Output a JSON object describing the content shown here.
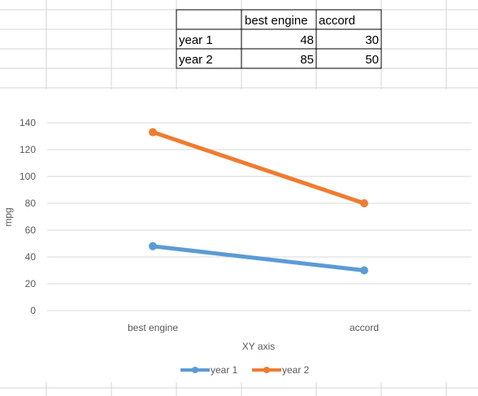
{
  "table": {
    "headers": [
      "",
      "best engine",
      "accord"
    ],
    "rows": [
      {
        "label": "year 1",
        "values": [
          "48",
          "30"
        ]
      },
      {
        "label": "year 2",
        "values": [
          "85",
          "50"
        ]
      }
    ]
  },
  "chart_data": {
    "type": "line",
    "stacked": true,
    "categories": [
      "best engine",
      "accord"
    ],
    "series": [
      {
        "name": "year 1",
        "values": [
          48,
          30
        ],
        "color": "#5B9BD5"
      },
      {
        "name": "year 2",
        "values": [
          85,
          50
        ],
        "color": "#ED7D31"
      }
    ],
    "xlabel": "XY axis",
    "ylabel": "mpg",
    "ylim": [
      0,
      140
    ],
    "yticks": [
      0,
      20,
      40,
      60,
      80,
      100,
      120,
      140
    ],
    "grid": true,
    "legend": "bottom"
  },
  "colors": {
    "gridline_sheet": "#d4d4d4",
    "gridline_chart": "#d9d9d9",
    "axis_text": "#595959"
  }
}
